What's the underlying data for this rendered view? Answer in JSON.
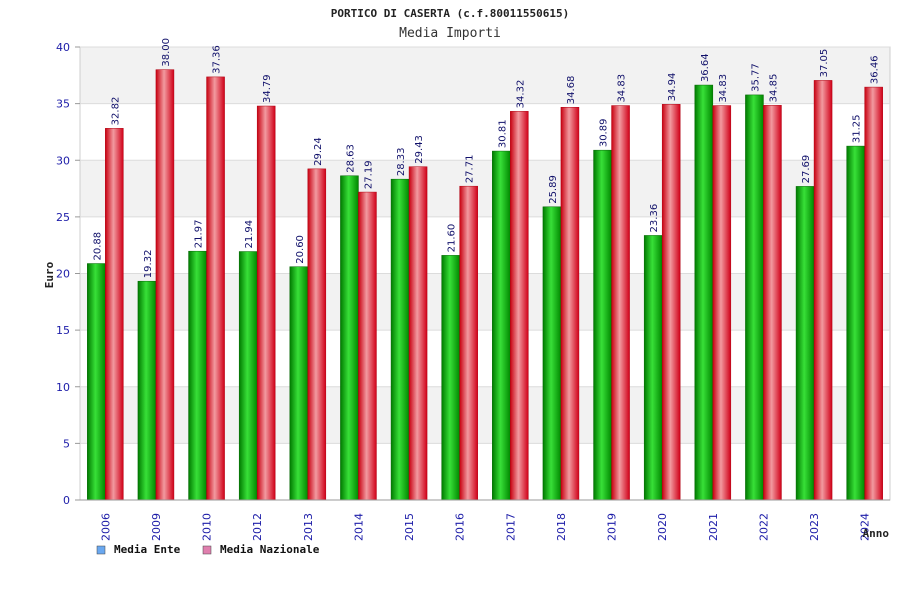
{
  "chart_data": {
    "type": "bar",
    "title": "PORTICO DI CASERTA (c.f.80011550615)",
    "subtitle": "Media Importi",
    "xlabel": "Anno",
    "ylabel": "Euro",
    "ylim": [
      0,
      40
    ],
    "yticks": [
      "0",
      "5",
      "10",
      "15",
      "20",
      "25",
      "30",
      "35",
      "40"
    ],
    "grid": true,
    "legend_position": "bottom-left",
    "categories": [
      "2006",
      "2009",
      "2010",
      "2012",
      "2013",
      "2014",
      "2015",
      "2016",
      "2017",
      "2018",
      "2019",
      "2020",
      "2021",
      "2022",
      "2023",
      "2024"
    ],
    "series": [
      {
        "name": "Media Ente",
        "color": "#1fbf1f",
        "legend_color": "#6aa8f0",
        "values": [
          20.88,
          19.32,
          21.97,
          21.94,
          20.6,
          28.63,
          28.33,
          21.6,
          30.81,
          25.89,
          30.89,
          23.36,
          36.64,
          35.77,
          27.69,
          31.25
        ],
        "labels": [
          "20.88",
          "19.32",
          "21.97",
          "21.94",
          "20.60",
          "28.63",
          "28.33",
          "21.60",
          "30.81",
          "25.89",
          "30.89",
          "23.36",
          "36.64",
          "35.77",
          "27.69",
          "31.25"
        ]
      },
      {
        "name": "Media Nazionale",
        "color": "#f01c28",
        "legend_color": "#e07fae",
        "values": [
          32.82,
          38.0,
          37.36,
          34.79,
          29.24,
          27.19,
          29.43,
          27.71,
          34.32,
          34.68,
          34.83,
          34.94,
          34.83,
          34.85,
          37.05,
          36.46
        ],
        "labels": [
          "32.82",
          "38.00",
          "37.36",
          "34.79",
          "29.24",
          "27.19",
          "29.43",
          "27.71",
          "34.32",
          "34.68",
          "34.83",
          "34.94",
          "34.83",
          "34.85",
          "37.05",
          "36.46"
        ]
      }
    ]
  }
}
